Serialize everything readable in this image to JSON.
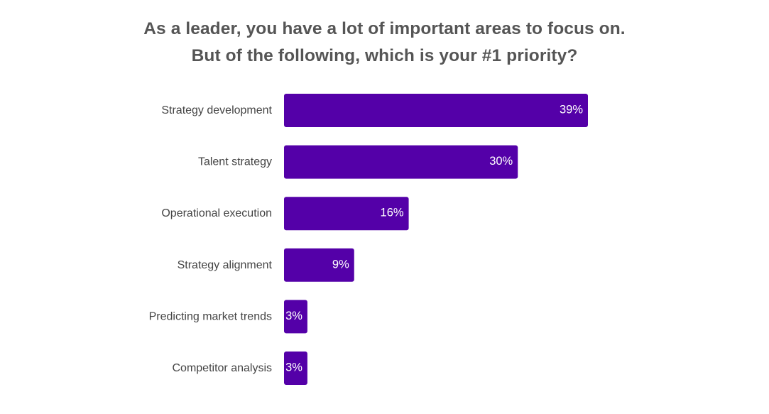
{
  "title_line1": "As a leader, you have a lot of important areas to focus on.",
  "title_line2": "But of the following, which is your #1 priority?",
  "chart_data": {
    "type": "bar",
    "orientation": "horizontal",
    "title": "As a leader, you have a lot of important areas to focus on. But of the following, which is your #1 priority?",
    "categories": [
      "Strategy development",
      "Talent strategy",
      "Operational execution",
      "Strategy alignment",
      "Predicting market trends",
      "Competitor analysis"
    ],
    "values": [
      39,
      30,
      16,
      9,
      3,
      3
    ],
    "value_labels": [
      "39%",
      "30%",
      "16%",
      "9%",
      "3%",
      "3%"
    ],
    "xlim": [
      0,
      39
    ],
    "grid": false,
    "bar_color": "#5400A8",
    "label_color": "#ffffff"
  }
}
